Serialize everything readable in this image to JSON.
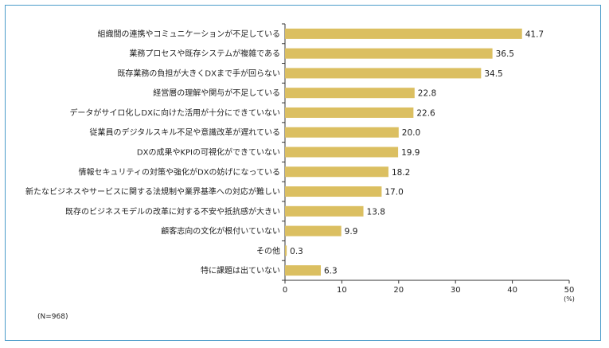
{
  "colors": {
    "bar": "#dbbf61",
    "frame": "#4a9bc9",
    "axis": "#333333",
    "text": "#222222"
  },
  "note": "(N=968)",
  "chart_data": {
    "type": "bar",
    "orientation": "horizontal",
    "title": "",
    "xlabel": "(%)",
    "ylabel": "",
    "xlim": [
      0,
      50
    ],
    "xticks": [
      0,
      10,
      20,
      30,
      40,
      50
    ],
    "tick_labels": [
      "0",
      "10",
      "20",
      "30",
      "40",
      "50"
    ],
    "categories": [
      "組織間の連携やコミュニケーションが不足している",
      "業務プロセスや既存システムが複雑である",
      "既存業務の負担が大きくDXまで手が回らない",
      "経営層の理解や関与が不足している",
      "データがサイロ化しDXに向けた活用が十分にできていない",
      "従業員のデジタルスキル不足や意識改革が遅れている",
      "DXの成果やKPIの可視化ができていない",
      "情報セキュリティの対策や強化がDXの妨げになっている",
      "新たなビジネスやサービスに関する法規制や業界基準への対応が難しい",
      "既存のビジネスモデルの改革に対する不安や抵抗感が大きい",
      "顧客志向の文化が根付いていない",
      "その他",
      "特に課題は出ていない"
    ],
    "values": [
      41.7,
      36.5,
      34.5,
      22.8,
      22.6,
      20.0,
      19.9,
      18.2,
      17.0,
      13.8,
      9.9,
      0.3,
      6.3
    ],
    "value_labels": [
      "41.7",
      "36.5",
      "34.5",
      "22.8",
      "22.6",
      "20.0",
      "19.9",
      "18.2",
      "17.0",
      "13.8",
      "9.9",
      "0.3",
      "6.3"
    ]
  }
}
